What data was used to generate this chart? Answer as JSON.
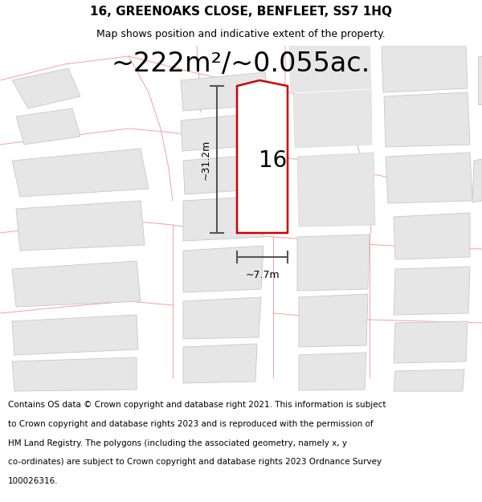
{
  "title_line1": "16, GREENOAKS CLOSE, BENFLEET, SS7 1HQ",
  "title_line2": "Map shows position and indicative extent of the property.",
  "area_text": "~222m²/~0.055ac.",
  "plot_number": "16",
  "dim_height": "~31.2m",
  "dim_width": "~7.7m",
  "footer_lines": [
    "Contains OS data © Crown copyright and database right 2021. This information is subject",
    "to Crown copyright and database rights 2023 and is reproduced with the permission of",
    "HM Land Registry. The polygons (including the associated geometry, namely x, y",
    "co-ordinates) are subject to Crown copyright and database rights 2023 Ordnance Survey",
    "100026316."
  ],
  "map_bg": "#f5f5f5",
  "plot_fill": "#ffffff",
  "plot_edge": "#cc0000",
  "neighbour_fill": "#e6e6e6",
  "neighbour_edge": "#c8c8c8",
  "road_edge": "#f5a0a0",
  "dim_line_color": "#555555",
  "title_fontsize": 11,
  "subtitle_fontsize": 9,
  "area_fontsize": 24,
  "plot_label_fontsize": 20,
  "dim_fontsize": 9,
  "footer_fontsize": 7.5
}
